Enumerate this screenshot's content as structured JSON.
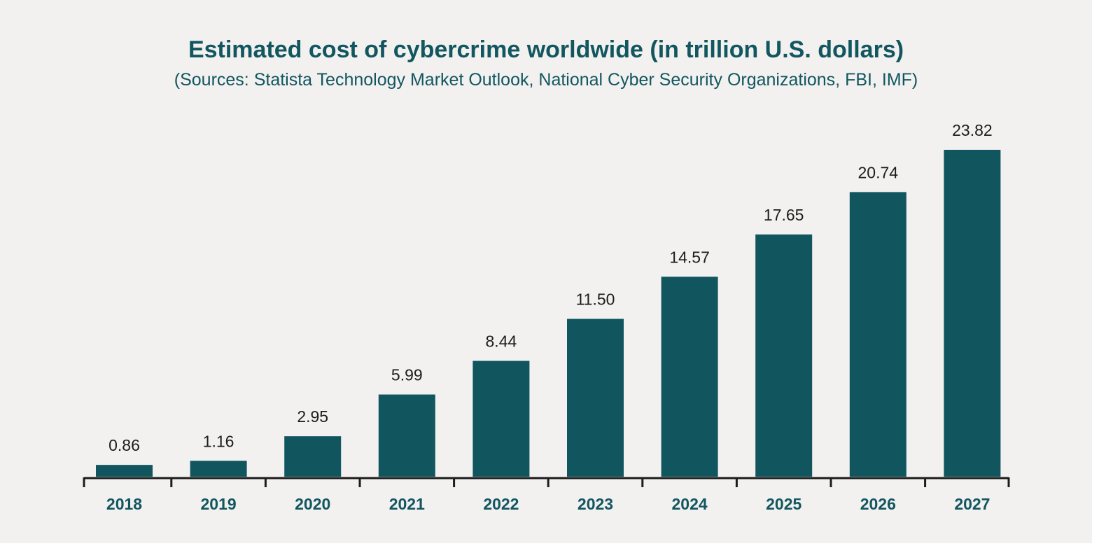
{
  "chart_data": {
    "type": "bar",
    "title": "Estimated cost of cybercrime worldwide (in trillion U.S. dollars)",
    "subtitle": "(Sources: Statista Technology Market Outlook, National Cyber Security Organizations, FBI, IMF)",
    "categories": [
      "2018",
      "2019",
      "2020",
      "2021",
      "2022",
      "2023",
      "2024",
      "2025",
      "2026",
      "2027"
    ],
    "values": [
      0.86,
      1.16,
      2.95,
      5.99,
      8.44,
      11.5,
      14.57,
      17.65,
      20.74,
      23.82
    ],
    "labels": [
      "0.86",
      "1.16",
      "2.95",
      "5.99",
      "8.44",
      "11.50",
      "14.57",
      "17.65",
      "20.74",
      "23.82"
    ],
    "xlabel": "",
    "ylabel": "",
    "ylim": [
      0,
      23.82
    ],
    "grid": false,
    "bar_color": "#11565f",
    "title_color": "#12565f",
    "background": "#f2f1f0"
  }
}
